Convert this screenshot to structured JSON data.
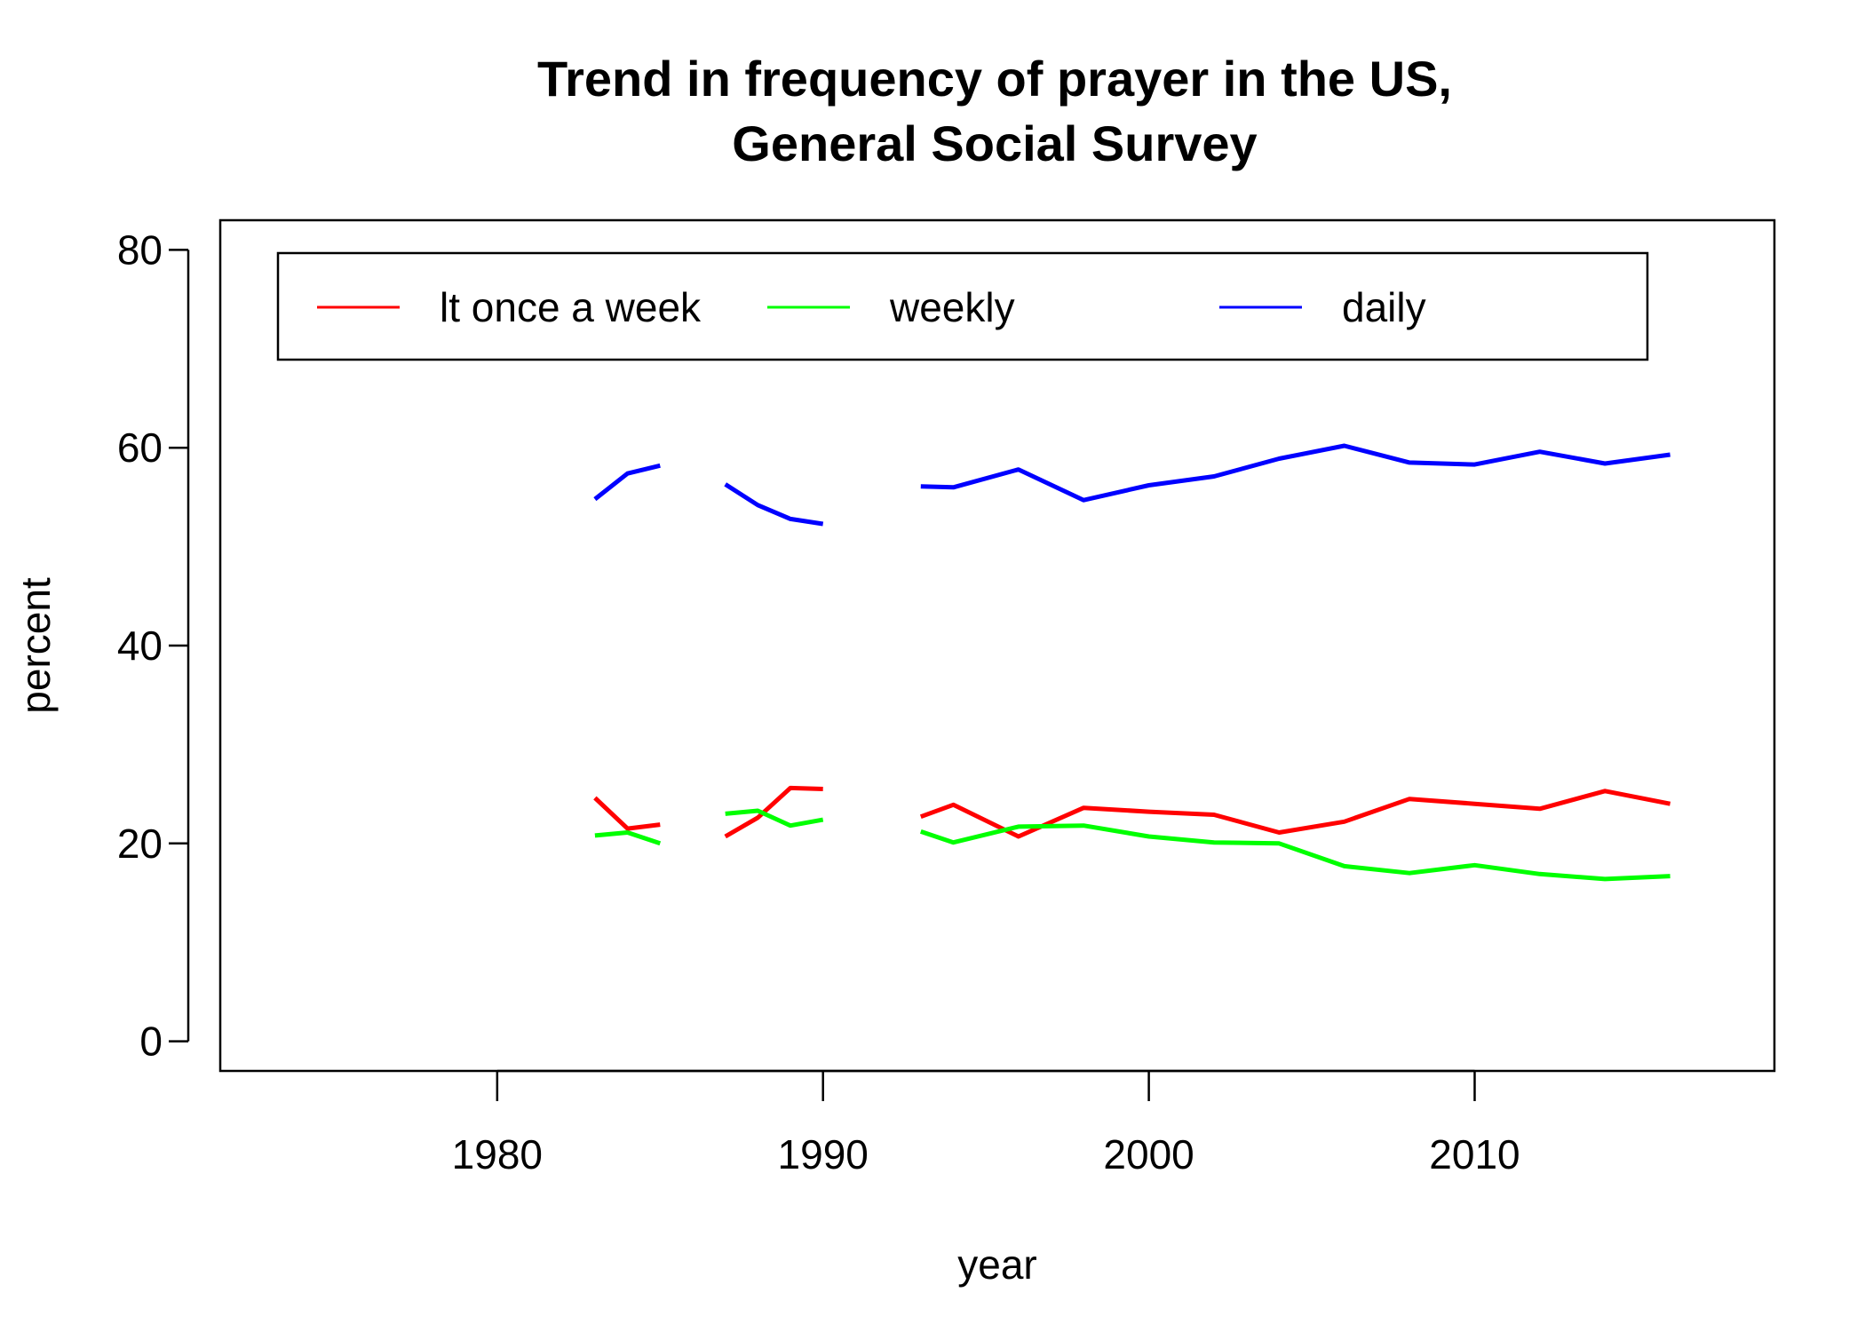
{
  "chart_data": {
    "type": "line",
    "title": [
      "Trend in frequency of prayer in the US,",
      "General Social Survey"
    ],
    "xlabel": "year",
    "ylabel": "percent",
    "xlim": [
      1971.5,
      2019.2
    ],
    "ylim": [
      -3,
      83
    ],
    "xticks": [
      1980,
      1990,
      2000,
      2010
    ],
    "yticks": [
      0,
      20,
      40,
      60,
      80
    ],
    "grid": false,
    "legend_position": "top",
    "series": [
      {
        "name": "lt once a week",
        "color": "#ff0000",
        "segments": [
          [
            [
              1983,
              24.6
            ],
            [
              1984,
              21.5
            ],
            [
              1985,
              21.9
            ]
          ],
          [
            [
              1987,
              20.7
            ],
            [
              1988,
              22.6
            ],
            [
              1989,
              25.6
            ],
            [
              1990,
              25.5
            ]
          ],
          [
            [
              1993,
              22.7
            ],
            [
              1994,
              23.9
            ],
            [
              1996,
              20.7
            ],
            [
              1998,
              23.6
            ],
            [
              2000,
              23.2
            ],
            [
              2002,
              22.9
            ],
            [
              2004,
              21.1
            ],
            [
              2006,
              22.2
            ],
            [
              2008,
              24.5
            ],
            [
              2010,
              24.0
            ],
            [
              2012,
              23.5
            ],
            [
              2014,
              25.3
            ],
            [
              2016,
              24.0
            ]
          ]
        ]
      },
      {
        "name": "weekly",
        "color": "#00ff00",
        "segments": [
          [
            [
              1983,
              20.8
            ],
            [
              1984,
              21.1
            ],
            [
              1985,
              20.0
            ]
          ],
          [
            [
              1987,
              23.0
            ],
            [
              1988,
              23.3
            ],
            [
              1989,
              21.8
            ],
            [
              1990,
              22.4
            ]
          ],
          [
            [
              1993,
              21.2
            ],
            [
              1994,
              20.1
            ],
            [
              1996,
              21.7
            ],
            [
              1998,
              21.8
            ],
            [
              2000,
              20.7
            ],
            [
              2002,
              20.1
            ],
            [
              2004,
              20.0
            ],
            [
              2006,
              17.7
            ],
            [
              2008,
              17.0
            ],
            [
              2010,
              17.8
            ],
            [
              2012,
              16.9
            ],
            [
              2014,
              16.4
            ],
            [
              2016,
              16.7
            ]
          ]
        ]
      },
      {
        "name": "daily",
        "color": "#0000ff",
        "segments": [
          [
            [
              1983,
              54.8
            ],
            [
              1984,
              57.4
            ],
            [
              1985,
              58.2
            ]
          ],
          [
            [
              1987,
              56.3
            ],
            [
              1988,
              54.2
            ],
            [
              1989,
              52.8
            ],
            [
              1990,
              52.3
            ]
          ],
          [
            [
              1993,
              56.1
            ],
            [
              1994,
              56.0
            ],
            [
              1996,
              57.8
            ],
            [
              1998,
              54.7
            ],
            [
              2000,
              56.2
            ],
            [
              2002,
              57.1
            ],
            [
              2004,
              58.9
            ],
            [
              2006,
              60.2
            ],
            [
              2008,
              58.5
            ],
            [
              2010,
              58.3
            ],
            [
              2012,
              59.6
            ],
            [
              2014,
              58.4
            ],
            [
              2016,
              59.3
            ]
          ]
        ]
      }
    ]
  }
}
